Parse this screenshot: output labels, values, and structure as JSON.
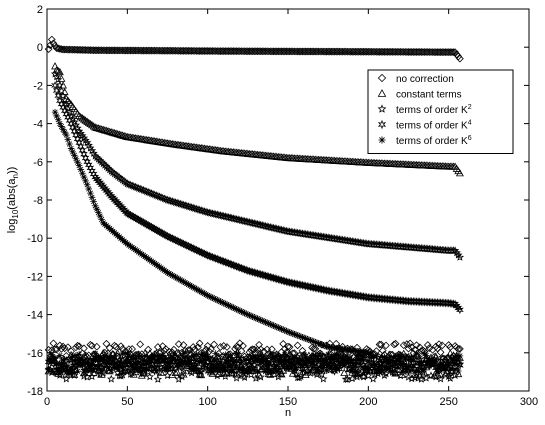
{
  "chart_data": {
    "type": "scatter",
    "title": "",
    "xlabel": "n",
    "ylabel_parts": {
      "base": "log",
      "sub1": "10",
      "mid": "(abs(a",
      "sub2": "n",
      "end": "))"
    },
    "xlim": [
      0,
      300
    ],
    "ylim": [
      -18,
      2
    ],
    "xticks": [
      0,
      50,
      100,
      150,
      200,
      250,
      300
    ],
    "yticks": [
      2,
      0,
      -2,
      -4,
      -6,
      -8,
      -10,
      -12,
      -14,
      -16,
      -18
    ],
    "grid": false,
    "legend_position": "top-right",
    "series": [
      {
        "name": "no correction",
        "label_base": "no correction",
        "label_sup": "",
        "marker": "diamond",
        "decay_curve": [
          [
            1,
            -0.1
          ],
          [
            2,
            0.1
          ],
          [
            3,
            0.4
          ],
          [
            4,
            0.2
          ],
          [
            6,
            -0.05
          ],
          [
            10,
            -0.12
          ],
          [
            30,
            -0.16
          ],
          [
            100,
            -0.2
          ],
          [
            200,
            -0.24
          ],
          [
            254,
            -0.26
          ],
          [
            257,
            -0.6
          ]
        ],
        "noise_band": {
          "range": [
            1,
            257
          ],
          "low": -16.5,
          "high": -15.5
        }
      },
      {
        "name": "constant terms",
        "label_base": "constant terms",
        "label_sup": "",
        "marker": "triangle",
        "decay_curve": [
          [
            5,
            -1.0
          ],
          [
            6,
            -1.2
          ],
          [
            8,
            -1.3
          ],
          [
            10,
            -2.0
          ],
          [
            12,
            -2.7
          ],
          [
            15,
            -3.0
          ],
          [
            20,
            -3.6
          ],
          [
            30,
            -4.2
          ],
          [
            50,
            -4.7
          ],
          [
            80,
            -5.1
          ],
          [
            110,
            -5.45
          ],
          [
            150,
            -5.8
          ],
          [
            200,
            -6.05
          ],
          [
            250,
            -6.25
          ],
          [
            254,
            -6.25
          ],
          [
            257,
            -6.6
          ]
        ],
        "noise_band": {
          "range": [
            1,
            257
          ],
          "low": -17.2,
          "high": -16.0
        }
      },
      {
        "name": "terms of order K2",
        "label_base": "terms of order K",
        "label_sup": "2",
        "marker": "star5",
        "decay_curve": [
          [
            5,
            -1.4
          ],
          [
            7,
            -1.7
          ],
          [
            9,
            -2.3
          ],
          [
            12,
            -3.0
          ],
          [
            15,
            -3.6
          ],
          [
            20,
            -4.4
          ],
          [
            25,
            -5.0
          ],
          [
            30,
            -5.7
          ],
          [
            40,
            -6.5
          ],
          [
            50,
            -7.15
          ],
          [
            75,
            -8.0
          ],
          [
            100,
            -8.65
          ],
          [
            150,
            -9.65
          ],
          [
            200,
            -10.3
          ],
          [
            250,
            -10.65
          ],
          [
            254,
            -10.65
          ],
          [
            257,
            -11.0
          ]
        ],
        "noise_band": {
          "range": [
            1,
            257
          ],
          "low": -17.4,
          "high": -16.2
        }
      },
      {
        "name": "terms of order K4",
        "label_base": "terms of order K",
        "label_sup": "4",
        "marker": "star6",
        "decay_curve": [
          [
            5,
            -2.0
          ],
          [
            8,
            -2.8
          ],
          [
            12,
            -3.5
          ],
          [
            15,
            -4.0
          ],
          [
            20,
            -5.0
          ],
          [
            25,
            -6.0
          ],
          [
            30,
            -6.8
          ],
          [
            40,
            -7.8
          ],
          [
            50,
            -8.7
          ],
          [
            75,
            -9.9
          ],
          [
            100,
            -10.9
          ],
          [
            125,
            -11.7
          ],
          [
            150,
            -12.3
          ],
          [
            175,
            -12.75
          ],
          [
            200,
            -13.1
          ],
          [
            225,
            -13.3
          ],
          [
            250,
            -13.4
          ],
          [
            254,
            -13.45
          ],
          [
            257,
            -13.75
          ]
        ],
        "noise_band": {
          "range": [
            1,
            257
          ],
          "low": -17.0,
          "high": -16.2
        }
      },
      {
        "name": "terms of order K6",
        "label_base": "terms of order K",
        "label_sup": "6",
        "marker": "asterisk",
        "decay_curve": [
          [
            5,
            -3.4
          ],
          [
            8,
            -4.0
          ],
          [
            12,
            -4.6
          ],
          [
            15,
            -5.3
          ],
          [
            20,
            -6.2
          ],
          [
            25,
            -7.2
          ],
          [
            30,
            -8.3
          ],
          [
            35,
            -9.2
          ],
          [
            50,
            -10.3
          ],
          [
            75,
            -11.8
          ],
          [
            100,
            -13.0
          ],
          [
            125,
            -14.0
          ],
          [
            150,
            -14.9
          ],
          [
            175,
            -15.7
          ],
          [
            200,
            -16.0
          ]
        ],
        "noise_band": {
          "range": [
            1,
            257
          ],
          "low": -17.0,
          "high": -16.0
        }
      }
    ]
  }
}
